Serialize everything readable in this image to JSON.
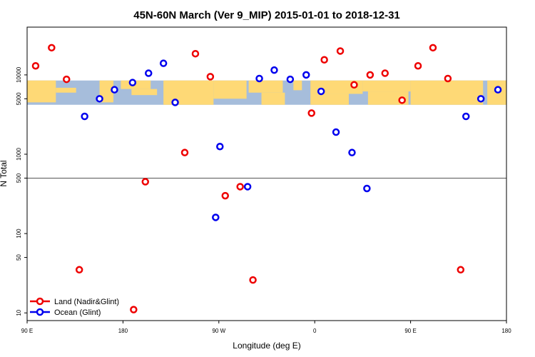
{
  "chart_data": {
    "type": "scatter",
    "title": "45N-60N March (Ver 9_MIP)   2015-01-01 to 2018-12-31",
    "xlabel": "Longitude (deg E)",
    "ylabel": "N Total",
    "x_scale": "linear",
    "y_scale": "log",
    "xlim": [
      90,
      540
    ],
    "ylim": [
      8,
      40000
    ],
    "x_ticks": [
      {
        "value": 90,
        "label": "90 E"
      },
      {
        "value": 180,
        "label": "180"
      },
      {
        "value": 270,
        "label": "90 W"
      },
      {
        "value": 360,
        "label": "0"
      },
      {
        "value": 450,
        "label": "90 E"
      },
      {
        "value": 540,
        "label": "180"
      }
    ],
    "y_ticks": [
      {
        "value": 10,
        "label": "10"
      },
      {
        "value": 50,
        "label": "50"
      },
      {
        "value": 100,
        "label": "100"
      },
      {
        "value": 500,
        "label": "500"
      },
      {
        "value": 1000,
        "label": "1000"
      },
      {
        "value": 5000,
        "label": "5000"
      },
      {
        "value": 10000,
        "label": "10000"
      }
    ],
    "reference_line": 500,
    "map_band": {
      "y_low": 4200,
      "y_high": 8500
    },
    "legend": {
      "position": "bottom-left"
    },
    "series": [
      {
        "name": "Land (Nadir&Glint)",
        "color": "#ee0000",
        "points": [
          {
            "x": 98,
            "y": 13000
          },
          {
            "x": 113,
            "y": 22000
          },
          {
            "x": 127,
            "y": 8800
          },
          {
            "x": 139,
            "y": 35
          },
          {
            "x": 190,
            "y": 11
          },
          {
            "x": 201,
            "y": 450
          },
          {
            "x": 238,
            "y": 1050
          },
          {
            "x": 248,
            "y": 18500
          },
          {
            "x": 262,
            "y": 9500
          },
          {
            "x": 276,
            "y": 300
          },
          {
            "x": 290,
            "y": 390
          },
          {
            "x": 302,
            "y": 26
          },
          {
            "x": 357,
            "y": 3300
          },
          {
            "x": 369,
            "y": 15500
          },
          {
            "x": 384,
            "y": 20000
          },
          {
            "x": 397,
            "y": 7500
          },
          {
            "x": 412,
            "y": 10000
          },
          {
            "x": 426,
            "y": 10500
          },
          {
            "x": 442,
            "y": 4800
          },
          {
            "x": 457,
            "y": 13000
          },
          {
            "x": 471,
            "y": 22000
          },
          {
            "x": 485,
            "y": 9000
          },
          {
            "x": 497,
            "y": 35
          }
        ]
      },
      {
        "name": "Ocean (Glint)",
        "color": "#0000ee",
        "points": [
          {
            "x": 144,
            "y": 3000
          },
          {
            "x": 158,
            "y": 5000
          },
          {
            "x": 172,
            "y": 6500
          },
          {
            "x": 189,
            "y": 8000
          },
          {
            "x": 204,
            "y": 10500
          },
          {
            "x": 218,
            "y": 14000
          },
          {
            "x": 229,
            "y": 4500
          },
          {
            "x": 267,
            "y": 160
          },
          {
            "x": 271,
            "y": 1250
          },
          {
            "x": 297,
            "y": 390
          },
          {
            "x": 308,
            "y": 9000
          },
          {
            "x": 322,
            "y": 11500
          },
          {
            "x": 337,
            "y": 8800
          },
          {
            "x": 352,
            "y": 10000
          },
          {
            "x": 366,
            "y": 6200
          },
          {
            "x": 380,
            "y": 1900
          },
          {
            "x": 395,
            "y": 1050
          },
          {
            "x": 409,
            "y": 370
          },
          {
            "x": 502,
            "y": 3000
          },
          {
            "x": 516,
            "y": 5000
          },
          {
            "x": 532,
            "y": 6500
          }
        ]
      }
    ]
  }
}
